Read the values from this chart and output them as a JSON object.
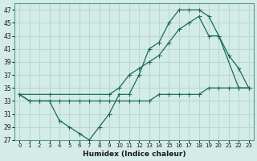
{
  "xlabel": "Humidex (Indice chaleur)",
  "background_color": "#d4ece8",
  "grid_color": "#b8d8d0",
  "line_color": "#1a6b5a",
  "ylim": [
    27,
    48
  ],
  "xlim": [
    -0.5,
    23.5
  ],
  "yticks": [
    27,
    29,
    31,
    33,
    35,
    37,
    39,
    41,
    43,
    45,
    47
  ],
  "xticks": [
    0,
    1,
    2,
    3,
    4,
    5,
    6,
    7,
    8,
    9,
    10,
    11,
    12,
    13,
    14,
    15,
    16,
    17,
    18,
    19,
    20,
    21,
    22,
    23
  ],
  "line1_x": [
    0,
    1,
    2,
    3,
    4,
    5,
    6,
    7,
    8,
    9,
    10,
    11,
    12,
    13,
    14,
    15,
    16,
    17,
    18,
    19,
    20,
    21,
    22,
    23
  ],
  "line1_y": [
    34,
    33,
    33,
    33,
    30,
    29,
    28,
    27,
    29,
    31,
    34,
    34,
    37,
    41,
    42,
    45,
    47,
    47,
    47,
    46,
    43,
    40,
    38,
    35
  ],
  "line2_x": [
    0,
    1,
    2,
    3,
    4,
    5,
    6,
    7,
    8,
    9,
    10,
    11,
    12,
    13,
    14,
    15,
    16,
    17,
    18,
    19,
    20,
    21,
    22,
    23
  ],
  "line2_y": [
    34,
    33,
    33,
    33,
    33,
    33,
    33,
    33,
    33,
    33,
    33,
    33,
    33,
    33,
    34,
    34,
    34,
    34,
    34,
    35,
    35,
    35,
    35,
    35
  ],
  "line3_x": [
    0,
    3,
    9,
    10,
    11,
    12,
    13,
    14,
    15,
    16,
    17,
    18,
    19,
    20,
    22,
    23
  ],
  "line3_y": [
    34,
    34,
    34,
    35,
    37,
    38,
    39,
    40,
    42,
    44,
    45,
    46,
    43,
    43,
    35,
    35
  ]
}
